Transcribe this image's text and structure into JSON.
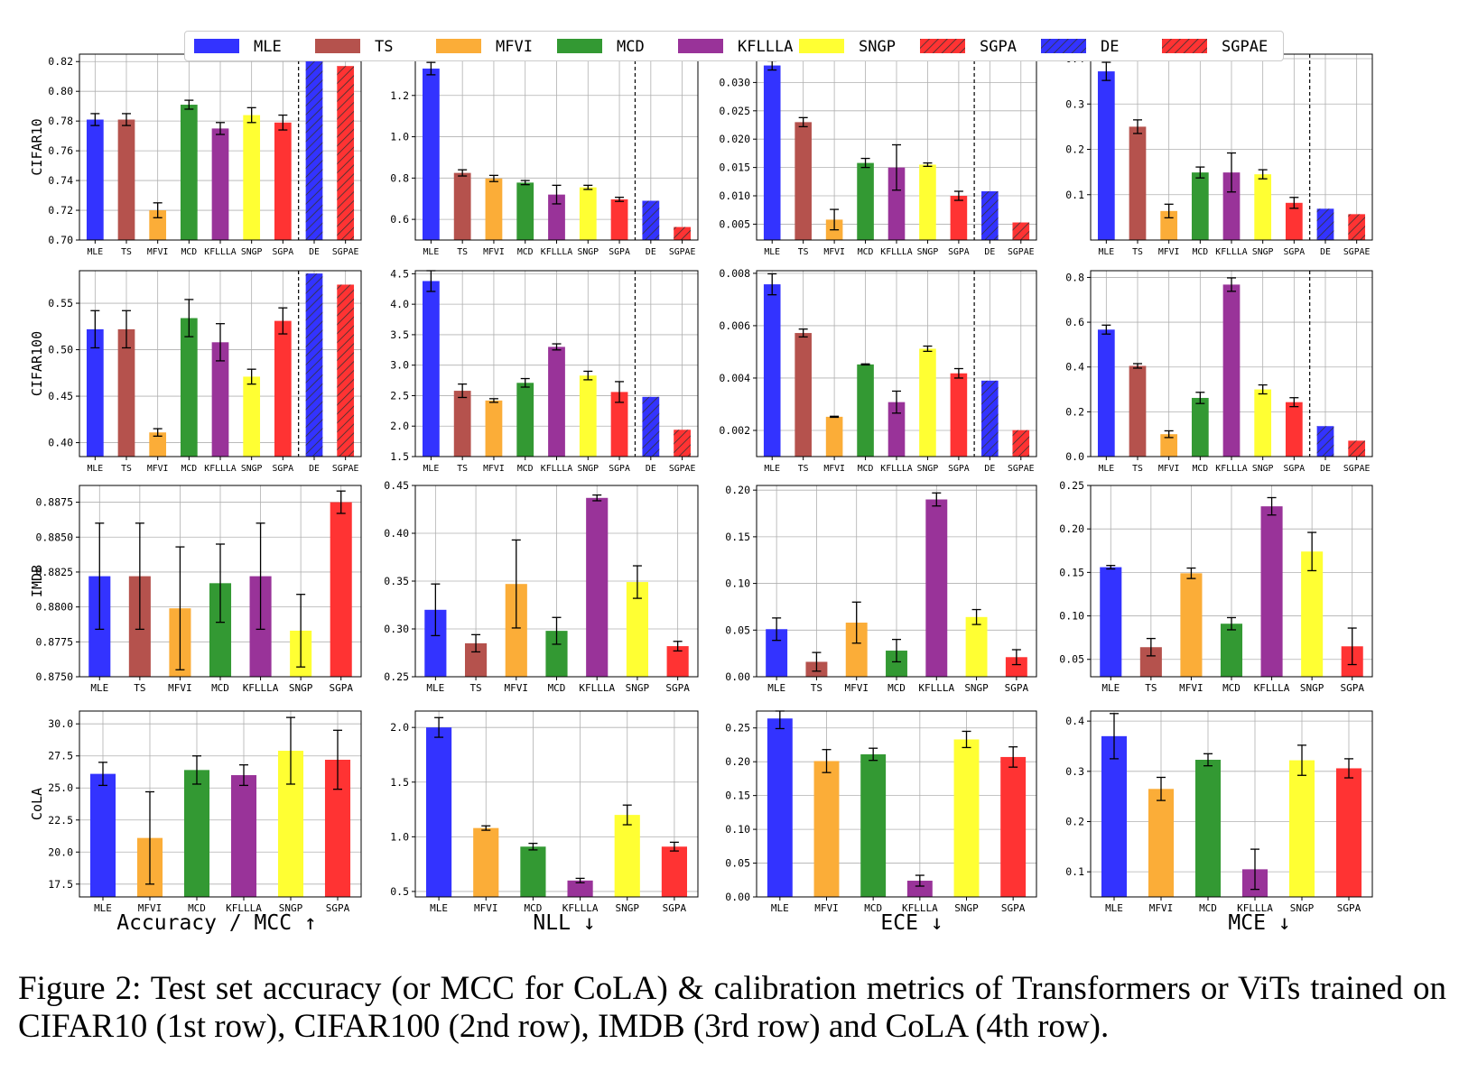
{
  "legend": {
    "items": [
      {
        "label": "MLE",
        "color": "#3333ff",
        "hatch": false
      },
      {
        "label": "TS",
        "color": "#b5524d",
        "hatch": false
      },
      {
        "label": "MFVI",
        "color": "#fbad38",
        "hatch": false
      },
      {
        "label": "MCD",
        "color": "#339933",
        "hatch": false
      },
      {
        "label": "KFLLLA",
        "color": "#993399",
        "hatch": false
      },
      {
        "label": "SNGP",
        "color": "#ffff33",
        "hatch": false
      },
      {
        "label": "SGPA",
        "color": "#ff3333",
        "hatch": true
      },
      {
        "label": "DE",
        "color": "#3333ff",
        "hatch": true
      },
      {
        "label": "SGPAE",
        "color": "#ff3333",
        "hatch": true
      }
    ]
  },
  "column_labels": [
    "Accuracy / MCC ↑",
    "NLL ↓",
    "ECE ↓",
    "MCE ↓"
  ],
  "caption": "Figure 2: Test set accuracy (or MCC for CoLA) & calibration metrics of Transformers or ViTs trained on CIFAR10 (1st row), CIFAR100 (2nd row), IMDB (3rd row) and CoLA (4th row).",
  "chart_data": [
    {
      "type": "bar",
      "row": 0,
      "col": 0,
      "ylabel": "CIFAR10",
      "ylim": [
        0.7,
        0.825
      ],
      "yticks": [
        "0.70",
        "0.72",
        "0.74",
        "0.76",
        "0.78",
        "0.80",
        "0.82"
      ],
      "categories": [
        "MLE",
        "TS",
        "MFVI",
        "MCD",
        "KFLLLA",
        "SNGP",
        "SGPA",
        "DE",
        "SGPAE"
      ],
      "values": [
        0.781,
        0.781,
        0.72,
        0.791,
        0.775,
        0.784,
        0.779,
        0.823,
        0.817
      ],
      "errors": [
        0.004,
        0.004,
        0.005,
        0.003,
        0.004,
        0.005,
        0.005,
        0,
        0
      ],
      "divider_after": 6
    },
    {
      "type": "bar",
      "row": 0,
      "col": 1,
      "ylabel": "",
      "ylim": [
        0.5,
        1.4
      ],
      "yticks": [
        "0.6",
        "0.8",
        "1.0",
        "1.2",
        "1.4"
      ],
      "categories": [
        "MLE",
        "TS",
        "MFVI",
        "MCD",
        "KFLLLA",
        "SNGP",
        "SGPA",
        "DE",
        "SGPAE"
      ],
      "values": [
        1.33,
        0.825,
        0.798,
        0.778,
        0.72,
        0.755,
        0.697,
        0.69,
        0.563
      ],
      "errors": [
        0.03,
        0.015,
        0.015,
        0.01,
        0.045,
        0.01,
        0.01,
        0,
        0
      ],
      "divider_after": 6
    },
    {
      "type": "bar",
      "row": 0,
      "col": 2,
      "ylabel": "",
      "ylim": [
        0.0022,
        0.035
      ],
      "yticks": [
        "0.005",
        "0.010",
        "0.015",
        "0.020",
        "0.025",
        "0.030",
        "0.035"
      ],
      "categories": [
        "MLE",
        "TS",
        "MFVI",
        "MCD",
        "KFLLLA",
        "SNGP",
        "SGPA",
        "DE",
        "SGPAE"
      ],
      "values": [
        0.033,
        0.023,
        0.0058,
        0.0158,
        0.015,
        0.0155,
        0.01,
        0.0108,
        0.0053
      ],
      "errors": [
        0.0008,
        0.0008,
        0.0018,
        0.0008,
        0.004,
        0.0003,
        0.0008,
        0,
        0
      ],
      "divider_after": 6
    },
    {
      "type": "bar",
      "row": 0,
      "col": 3,
      "ylabel": "",
      "ylim": [
        0.0,
        0.41
      ],
      "yticks": [
        "0.1",
        "0.2",
        "0.3",
        "0.4"
      ],
      "categories": [
        "MLE",
        "TS",
        "MFVI",
        "MCD",
        "KFLLLA",
        "SNGP",
        "SGPA",
        "DE",
        "SGPAE"
      ],
      "values": [
        0.372,
        0.25,
        0.064,
        0.149,
        0.149,
        0.145,
        0.082,
        0.069,
        0.057
      ],
      "errors": [
        0.02,
        0.015,
        0.015,
        0.012,
        0.043,
        0.01,
        0.012,
        0,
        0
      ],
      "divider_after": 6
    },
    {
      "type": "bar",
      "row": 1,
      "col": 0,
      "ylabel": "CIFAR100",
      "ylim": [
        0.385,
        0.585
      ],
      "yticks": [
        "0.40",
        "0.45",
        "0.50",
        "0.55"
      ],
      "categories": [
        "MLE",
        "TS",
        "MFVI",
        "MCD",
        "KFLLLA",
        "SNGP",
        "SGPA",
        "DE",
        "SGPAE"
      ],
      "values": [
        0.522,
        0.522,
        0.411,
        0.534,
        0.508,
        0.471,
        0.531,
        0.582,
        0.57
      ],
      "errors": [
        0.02,
        0.02,
        0.004,
        0.02,
        0.02,
        0.008,
        0.014,
        0,
        0
      ],
      "divider_after": 6
    },
    {
      "type": "bar",
      "row": 1,
      "col": 1,
      "ylabel": "",
      "ylim": [
        1.5,
        4.55
      ],
      "yticks": [
        "1.5",
        "2.0",
        "2.5",
        "3.0",
        "3.5",
        "4.0",
        "4.5"
      ],
      "categories": [
        "MLE",
        "TS",
        "MFVI",
        "MCD",
        "KFLLLA",
        "SNGP",
        "SGPA",
        "DE",
        "SGPAE"
      ],
      "values": [
        4.38,
        2.58,
        2.42,
        2.71,
        3.3,
        2.83,
        2.56,
        2.48,
        1.94
      ],
      "errors": [
        0.17,
        0.11,
        0.03,
        0.07,
        0.05,
        0.07,
        0.17,
        0,
        0
      ],
      "divider_after": 6
    },
    {
      "type": "bar",
      "row": 1,
      "col": 2,
      "ylabel": "",
      "ylim": [
        0.001,
        0.0081
      ],
      "yticks": [
        "0.002",
        "0.004",
        "0.006",
        "0.008"
      ],
      "categories": [
        "MLE",
        "TS",
        "MFVI",
        "MCD",
        "KFLLLA",
        "SNGP",
        "SGPA",
        "DE",
        "SGPAE"
      ],
      "values": [
        0.00758,
        0.00572,
        0.00252,
        0.00452,
        0.00308,
        0.00512,
        0.00418,
        0.0039,
        0.00201
      ],
      "errors": [
        0.0004,
        0.00015,
        2e-05,
        2e-05,
        0.00042,
        0.0001,
        0.00018,
        0,
        0
      ],
      "divider_after": 6
    },
    {
      "type": "bar",
      "row": 1,
      "col": 3,
      "ylabel": "",
      "ylim": [
        0.0,
        0.83
      ],
      "yticks": [
        "0.0",
        "0.2",
        "0.4",
        "0.6",
        "0.8"
      ],
      "categories": [
        "MLE",
        "TS",
        "MFVI",
        "MCD",
        "KFLLLA",
        "SNGP",
        "SGPA",
        "DE",
        "SGPAE"
      ],
      "values": [
        0.567,
        0.405,
        0.1,
        0.262,
        0.768,
        0.3,
        0.243,
        0.136,
        0.071
      ],
      "errors": [
        0.02,
        0.01,
        0.015,
        0.025,
        0.03,
        0.02,
        0.02,
        0,
        0
      ],
      "divider_after": 6
    },
    {
      "type": "bar",
      "row": 2,
      "col": 0,
      "ylabel": "IMDB",
      "ylim": [
        0.875,
        0.8887
      ],
      "yticks": [
        "0.8750",
        "0.8775",
        "0.8800",
        "0.8825",
        "0.8850",
        "0.8875"
      ],
      "categories": [
        "MLE",
        "TS",
        "MFVI",
        "MCD",
        "KFLLLA",
        "SNGP",
        "SGPA"
      ],
      "values": [
        0.8822,
        0.8822,
        0.8799,
        0.8817,
        0.8822,
        0.8783,
        0.8875
      ],
      "errors": [
        0.0038,
        0.0038,
        0.0044,
        0.0028,
        0.0038,
        0.0026,
        0.0008
      ],
      "divider_after": null
    },
    {
      "type": "bar",
      "row": 2,
      "col": 1,
      "ylabel": "",
      "ylim": [
        0.25,
        0.45
      ],
      "yticks": [
        "0.25",
        "0.30",
        "0.35",
        "0.40",
        "0.45"
      ],
      "categories": [
        "MLE",
        "TS",
        "MFVI",
        "MCD",
        "KFLLLA",
        "SNGP",
        "SGPA"
      ],
      "values": [
        0.32,
        0.285,
        0.347,
        0.298,
        0.437,
        0.349,
        0.282
      ],
      "errors": [
        0.027,
        0.009,
        0.046,
        0.014,
        0.003,
        0.017,
        0.005
      ],
      "divider_after": null
    },
    {
      "type": "bar",
      "row": 2,
      "col": 2,
      "ylabel": "",
      "ylim": [
        0.0,
        0.205
      ],
      "yticks": [
        "0.00",
        "0.05",
        "0.10",
        "0.15",
        "0.20"
      ],
      "categories": [
        "MLE",
        "TS",
        "MFVI",
        "MCD",
        "KFLLLA",
        "SNGP",
        "SGPA"
      ],
      "values": [
        0.051,
        0.016,
        0.058,
        0.028,
        0.19,
        0.064,
        0.021
      ],
      "errors": [
        0.012,
        0.01,
        0.022,
        0.012,
        0.007,
        0.008,
        0.008
      ],
      "divider_after": null
    },
    {
      "type": "bar",
      "row": 2,
      "col": 3,
      "ylabel": "",
      "ylim": [
        0.03,
        0.25
      ],
      "yticks": [
        "0.05",
        "0.10",
        "0.15",
        "0.20",
        "0.25"
      ],
      "categories": [
        "MLE",
        "TS",
        "MFVI",
        "MCD",
        "KFLLLA",
        "SNGP",
        "SGPA"
      ],
      "values": [
        0.156,
        0.064,
        0.149,
        0.091,
        0.226,
        0.174,
        0.065
      ],
      "errors": [
        0.002,
        0.01,
        0.006,
        0.007,
        0.01,
        0.022,
        0.021
      ],
      "divider_after": null
    },
    {
      "type": "bar",
      "row": 3,
      "col": 0,
      "ylabel": "CoLA",
      "ylim": [
        16.5,
        31.0
      ],
      "yticks": [
        "17.5",
        "20.0",
        "22.5",
        "25.0",
        "27.5",
        "30.0"
      ],
      "categories": [
        "MLE",
        "MFVI",
        "MCD",
        "KFLLLA",
        "SNGP",
        "SGPA"
      ],
      "values": [
        26.1,
        21.1,
        26.4,
        26.0,
        27.9,
        27.2
      ],
      "errors": [
        0.9,
        3.6,
        1.1,
        0.8,
        2.6,
        2.3
      ],
      "divider_after": null
    },
    {
      "type": "bar",
      "row": 3,
      "col": 1,
      "ylabel": "",
      "ylim": [
        0.45,
        2.15
      ],
      "yticks": [
        "0.5",
        "1.0",
        "1.5",
        "2.0"
      ],
      "categories": [
        "MLE",
        "MFVI",
        "MCD",
        "KFLLLA",
        "SNGP",
        "SGPA"
      ],
      "values": [
        2.0,
        1.08,
        0.91,
        0.6,
        1.2,
        0.91
      ],
      "errors": [
        0.09,
        0.02,
        0.03,
        0.02,
        0.09,
        0.04
      ],
      "divider_after": null
    },
    {
      "type": "bar",
      "row": 3,
      "col": 2,
      "ylabel": "",
      "ylim": [
        0.0,
        0.275
      ],
      "yticks": [
        "0.00",
        "0.05",
        "0.10",
        "0.15",
        "0.20",
        "0.25"
      ],
      "categories": [
        "MLE",
        "MFVI",
        "MCD",
        "KFLLLA",
        "SNGP",
        "SGPA"
      ],
      "values": [
        0.264,
        0.201,
        0.211,
        0.024,
        0.233,
        0.207
      ],
      "errors": [
        0.015,
        0.017,
        0.009,
        0.008,
        0.012,
        0.015
      ],
      "divider_after": null
    },
    {
      "type": "bar",
      "row": 3,
      "col": 3,
      "ylabel": "",
      "ylim": [
        0.05,
        0.42
      ],
      "yticks": [
        "0.1",
        "0.2",
        "0.3",
        "0.4"
      ],
      "categories": [
        "MLE",
        "MFVI",
        "MCD",
        "KFLLLA",
        "SNGP",
        "SGPA"
      ],
      "values": [
        0.37,
        0.265,
        0.323,
        0.105,
        0.322,
        0.306
      ],
      "errors": [
        0.045,
        0.023,
        0.012,
        0.04,
        0.03,
        0.019
      ],
      "divider_after": null
    }
  ]
}
